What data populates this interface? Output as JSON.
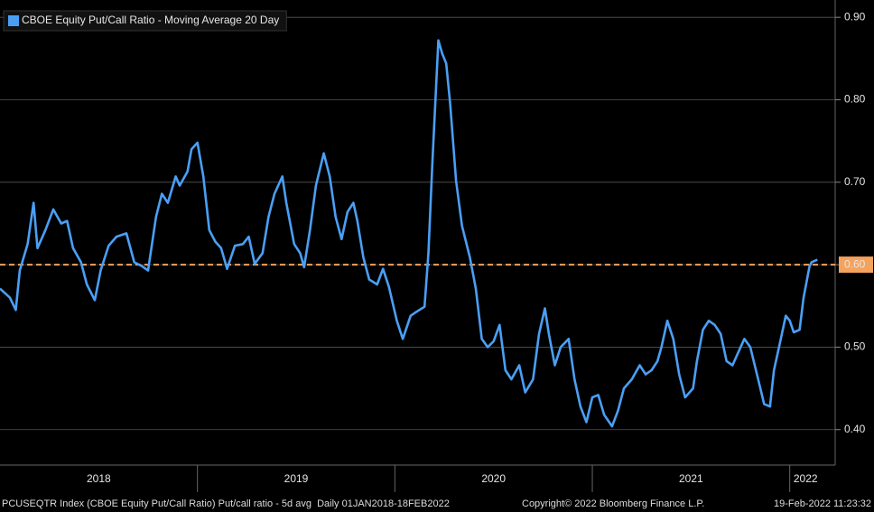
{
  "chart_data": {
    "type": "line",
    "background": "#000000",
    "grid": true,
    "legend_position": "top-left",
    "series": [
      {
        "name": "CBOE Equity Put/Call Ratio - Moving Average 20 Day",
        "color": "#4a9ff5",
        "x": [
          2018.0,
          2018.05,
          2018.08,
          2018.1,
          2018.14,
          2018.17,
          2018.19,
          2018.23,
          2018.27,
          2018.31,
          2018.34,
          2018.37,
          2018.41,
          2018.44,
          2018.48,
          2018.51,
          2018.55,
          2018.59,
          2018.64,
          2018.68,
          2018.72,
          2018.75,
          2018.79,
          2018.82,
          2018.85,
          2018.89,
          2018.91,
          2018.95,
          2018.97,
          2019.0,
          2019.03,
          2019.06,
          2019.09,
          2019.12,
          2019.15,
          2019.19,
          2019.23,
          2019.26,
          2019.29,
          2019.33,
          2019.36,
          2019.39,
          2019.43,
          2019.45,
          2019.49,
          2019.52,
          2019.54,
          2019.57,
          2019.6,
          2019.64,
          2019.67,
          2019.7,
          2019.73,
          2019.76,
          2019.79,
          2019.81,
          2019.84,
          2019.87,
          2019.91,
          2019.94,
          2019.97,
          2020.01,
          2020.04,
          2020.08,
          2020.11,
          2020.15,
          2020.17,
          2020.19,
          2020.22,
          2020.24,
          2020.26,
          2020.28,
          2020.31,
          2020.34,
          2020.38,
          2020.41,
          2020.44,
          2020.47,
          2020.5,
          2020.53,
          2020.56,
          2020.59,
          2020.63,
          2020.66,
          2020.7,
          2020.73,
          2020.76,
          2020.78,
          2020.81,
          2020.84,
          2020.88,
          2020.91,
          2020.94,
          2020.97,
          2021.0,
          2021.03,
          2021.06,
          2021.1,
          2021.13,
          2021.16,
          2021.2,
          2021.24,
          2021.27,
          2021.3,
          2021.33,
          2021.35,
          2021.38,
          2021.41,
          2021.44,
          2021.47,
          2021.51,
          2021.53,
          2021.56,
          2021.59,
          2021.62,
          2021.65,
          2021.68,
          2021.71,
          2021.74,
          2021.77,
          2021.8,
          2021.84,
          2021.87,
          2021.9,
          2021.92,
          2021.95,
          2021.98,
          2022.0,
          2022.02,
          2022.05,
          2022.07,
          2022.1,
          2022.11,
          2022.14
        ],
        "values": [
          0.571,
          0.56,
          0.545,
          0.593,
          0.625,
          0.675,
          0.62,
          0.642,
          0.667,
          0.65,
          0.653,
          0.62,
          0.603,
          0.576,
          0.557,
          0.593,
          0.623,
          0.634,
          0.638,
          0.603,
          0.598,
          0.593,
          0.658,
          0.686,
          0.675,
          0.707,
          0.696,
          0.713,
          0.74,
          0.748,
          0.707,
          0.642,
          0.628,
          0.62,
          0.595,
          0.623,
          0.625,
          0.634,
          0.601,
          0.614,
          0.658,
          0.686,
          0.707,
          0.675,
          0.625,
          0.614,
          0.597,
          0.642,
          0.696,
          0.735,
          0.707,
          0.658,
          0.631,
          0.664,
          0.675,
          0.653,
          0.609,
          0.582,
          0.576,
          0.595,
          0.573,
          0.532,
          0.51,
          0.538,
          0.543,
          0.549,
          0.614,
          0.724,
          0.872,
          0.856,
          0.844,
          0.795,
          0.702,
          0.647,
          0.609,
          0.571,
          0.51,
          0.5,
          0.507,
          0.527,
          0.472,
          0.461,
          0.478,
          0.445,
          0.461,
          0.516,
          0.547,
          0.516,
          0.478,
          0.5,
          0.51,
          0.461,
          0.428,
          0.409,
          0.439,
          0.442,
          0.418,
          0.404,
          0.423,
          0.45,
          0.461,
          0.478,
          0.467,
          0.472,
          0.483,
          0.5,
          0.532,
          0.51,
          0.467,
          0.439,
          0.45,
          0.483,
          0.521,
          0.532,
          0.527,
          0.516,
          0.483,
          0.478,
          0.494,
          0.51,
          0.5,
          0.461,
          0.431,
          0.428,
          0.472,
          0.505,
          0.538,
          0.532,
          0.518,
          0.521,
          0.56,
          0.598,
          0.603,
          0.606
        ]
      }
    ],
    "xlim": [
      2018,
      2022.23
    ],
    "ylim": [
      0.357,
      0.921
    ],
    "yticks": [
      {
        "value": 0.4,
        "label": "0.40"
      },
      {
        "value": 0.5,
        "label": "0.50"
      },
      {
        "value": 0.6,
        "label": "0.60"
      },
      {
        "value": 0.7,
        "label": "0.70"
      },
      {
        "value": 0.8,
        "label": "0.80"
      },
      {
        "value": 0.9,
        "label": "0.90"
      }
    ],
    "xticks": [
      {
        "value": 2018.5,
        "label": "2018"
      },
      {
        "value": 2019.5,
        "label": "2019"
      },
      {
        "value": 2020.5,
        "label": "2020"
      },
      {
        "value": 2021.5,
        "label": "2021"
      },
      {
        "value": 2022.08,
        "label": "2022"
      }
    ],
    "year_boundaries": [
      2019,
      2020,
      2021,
      2022
    ],
    "reference_line": {
      "value": 0.6,
      "label": "0.60",
      "color": "#f5a25d"
    },
    "footer": {
      "description": "PCUSEQTR Index (CBOE Equity Put/Call Ratio) Put/call ratio - 5d avg  Daily 01JAN2018-18FEB2022",
      "copyright": "Copyright© 2022 Bloomberg Finance L.P.",
      "timestamp": "19-Feb-2022 11:23:32"
    }
  }
}
